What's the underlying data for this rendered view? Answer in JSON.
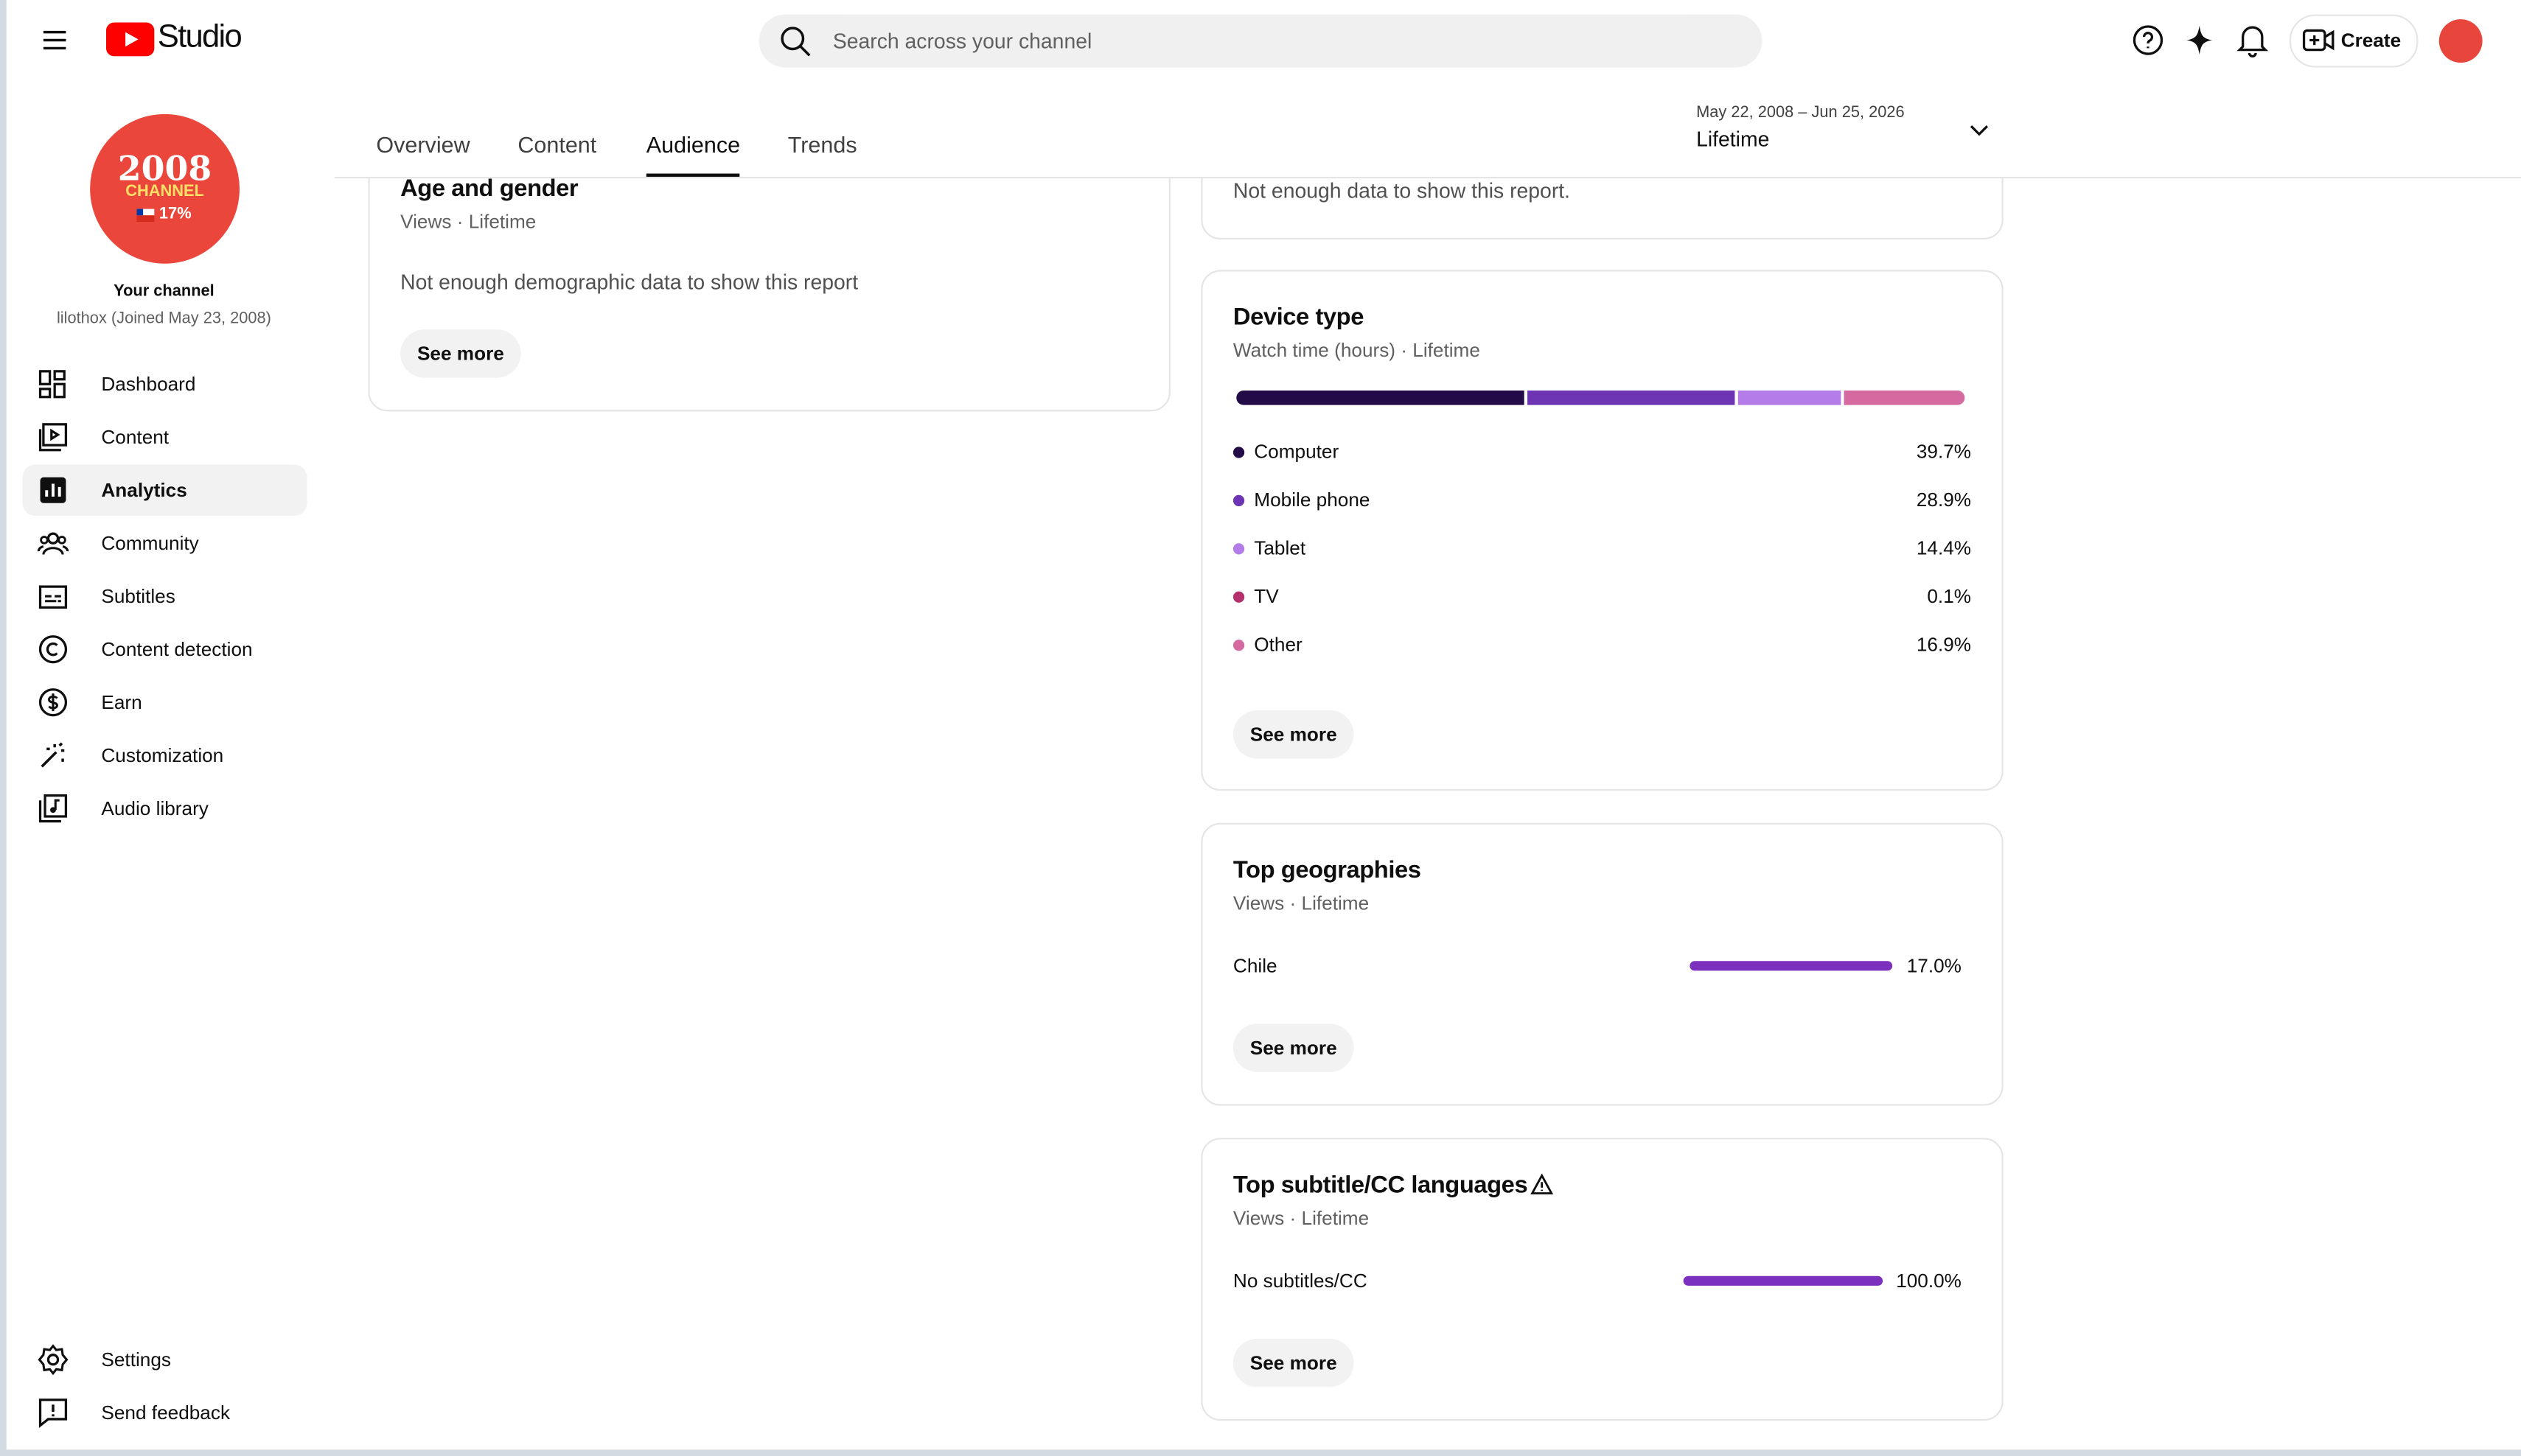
{
  "header": {
    "logo": "Studio",
    "search_placeholder": "Search across your channel",
    "create": "Create"
  },
  "sidebar": {
    "avatar": {
      "line1": "2008",
      "line2": "CHANNEL",
      "line3": "17%"
    },
    "channel_label": "Your channel",
    "channel_meta": "lilothox (Joined May 23, 2008)",
    "nav": [
      "Dashboard",
      "Content",
      "Analytics",
      "Community",
      "Subtitles",
      "Content detection",
      "Earn",
      "Customization",
      "Audio library"
    ],
    "active": 2,
    "footer": [
      "Settings",
      "Send feedback"
    ]
  },
  "tabs": {
    "items": [
      "Overview",
      "Content",
      "Audience",
      "Trends"
    ],
    "active": 2
  },
  "date_range": {
    "range": "May 22, 2008 – Jun 25, 2026",
    "label": "Lifetime"
  },
  "age_gender": {
    "title": "Age and gender",
    "subtitle": "Views · Lifetime",
    "message": "Not enough demographic data to show this report",
    "button": "See more"
  },
  "top_card": {
    "message": "Not enough data to show this report."
  },
  "device_type": {
    "title": "Device type",
    "subtitle": "Watch time (hours) · Lifetime",
    "button": "See more",
    "items": [
      {
        "name": "Computer",
        "value": 39.7,
        "label": "39.7%",
        "color": "#230b47"
      },
      {
        "name": "Mobile phone",
        "value": 28.9,
        "label": "28.9%",
        "color": "#6d35b3"
      },
      {
        "name": "Tablet",
        "value": 14.4,
        "label": "14.4%",
        "color": "#b47ce8"
      },
      {
        "name": "TV",
        "value": 0.1,
        "label": "0.1%",
        "color": "#b3306c"
      },
      {
        "name": "Other",
        "value": 16.9,
        "label": "16.9%",
        "color": "#d46a9f"
      }
    ]
  },
  "top_geographies": {
    "title": "Top geographies",
    "subtitle": "Views · Lifetime",
    "button": "See more",
    "color": "#7b30be",
    "rows": [
      {
        "name": "Chile",
        "value": 17.0,
        "label": "17.0%"
      }
    ]
  },
  "subtitle_languages": {
    "title": "Top subtitle/CC languages",
    "subtitle": "Views · Lifetime",
    "button": "See more",
    "color": "#7b30be",
    "rows": [
      {
        "name": "No subtitles/CC",
        "value": 100.0,
        "label": "100.0%"
      }
    ]
  }
}
